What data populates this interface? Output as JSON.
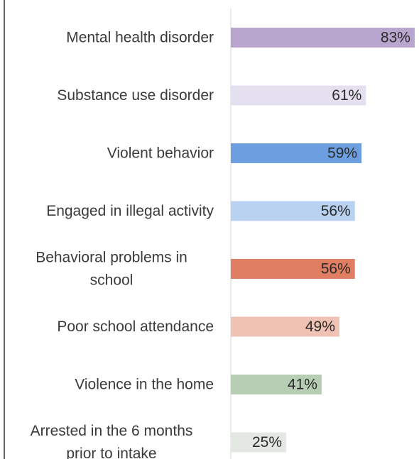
{
  "chart_data": {
    "type": "bar",
    "orientation": "horizontal",
    "categories": [
      "Mental health disorder",
      "Substance use disorder",
      "Violent behavior",
      "Engaged in illegal activity",
      "Behavioral problems in school",
      "Poor school attendance",
      "Violence in the home",
      "Arrested in the 6 months prior to intake"
    ],
    "label_lines": [
      [
        "Mental health disorder"
      ],
      [
        "Substance use disorder"
      ],
      [
        "Violent behavior"
      ],
      [
        "Engaged in illegal activity"
      ],
      [
        "Behavioral problems in",
        "school"
      ],
      [
        "Poor school attendance"
      ],
      [
        "Violence in the home"
      ],
      [
        "Arrested in the 6 months",
        "prior to intake"
      ]
    ],
    "values": [
      83,
      61,
      59,
      56,
      56,
      49,
      41,
      25
    ],
    "value_labels": [
      "83%",
      "61%",
      "59%",
      "56%",
      "56%",
      "49%",
      "41%",
      "25%"
    ],
    "colors": [
      "#b9a6cf",
      "#e5e0f0",
      "#6d9fe0",
      "#b9d2f1",
      "#e07e63",
      "#efc2b4",
      "#b7ceb5",
      "#e3e8e2"
    ],
    "xlim": [
      0,
      100
    ],
    "grid": false,
    "title": "",
    "xlabel": "",
    "ylabel": ""
  }
}
